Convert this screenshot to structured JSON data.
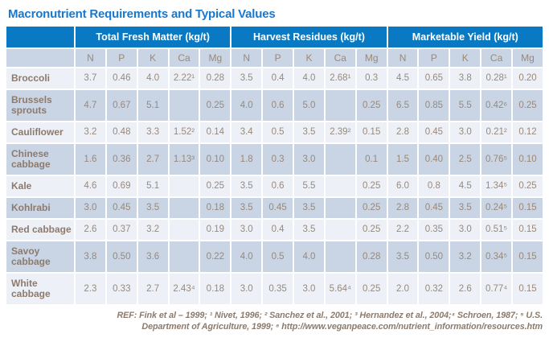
{
  "title": "Macronutrient Requirements and Typical Values",
  "colors": {
    "title_blue": "#1778ce",
    "header_blue": "#0879c2",
    "row_light": "#edf1f7",
    "row_dark": "#c9d5e5",
    "text_brown": "#9b8877"
  },
  "chart_data": {
    "type": "table",
    "title": "Macronutrient Requirements and Typical Values",
    "column_groups": [
      "Total Fresh Matter (kg/t)",
      "Harvest Residues (kg/t)",
      "Marketable Yield (kg/t)"
    ],
    "columns_per_group": [
      "N",
      "P",
      "K",
      "Ca",
      "Mg"
    ],
    "rows": [
      {
        "label": "Broccoli",
        "total_fresh_matter": [
          "3.7",
          "0.46",
          "4.0",
          "2.22¹",
          "0.28"
        ],
        "harvest_residues": [
          "3.5",
          "0.4",
          "4.0",
          "2.68¹",
          "0.3"
        ],
        "marketable_yield": [
          "4.5",
          "0.65",
          "3.8",
          "0.28¹",
          "0.20"
        ]
      },
      {
        "label": "Brussels sprouts",
        "total_fresh_matter": [
          "4.7",
          "0.67",
          "5.1",
          "",
          "0.25"
        ],
        "harvest_residues": [
          "4.0",
          "0.6",
          "5.0",
          "",
          "0.25"
        ],
        "marketable_yield": [
          "6.5",
          "0.85",
          "5.5",
          "0.42⁶",
          "0.25"
        ]
      },
      {
        "label": "Cauliflower",
        "total_fresh_matter": [
          "3.2",
          "0.48",
          "3.3",
          "1.52²",
          "0.14"
        ],
        "harvest_residues": [
          "3.4",
          "0.5",
          "3.5",
          "2.39²",
          "0.15"
        ],
        "marketable_yield": [
          "2.8",
          "0.45",
          "3.0",
          "0.21²",
          "0.12"
        ]
      },
      {
        "label": "Chinese cabbage",
        "total_fresh_matter": [
          "1.6",
          "0.36",
          "2.7",
          "1.13³",
          "0.10"
        ],
        "harvest_residues": [
          "1.8",
          "0.3",
          "3.0",
          "",
          "0.1"
        ],
        "marketable_yield": [
          "1.5",
          "0.40",
          "2.5",
          "0.76⁵",
          "0.10"
        ]
      },
      {
        "label": "Kale",
        "total_fresh_matter": [
          "4.6",
          "0.69",
          "5.1",
          "",
          "0.25"
        ],
        "harvest_residues": [
          "3.5",
          "0.6",
          "5.5",
          "",
          "0.25"
        ],
        "marketable_yield": [
          "6.0",
          "0.8",
          "4.5",
          "1.34⁵",
          "0.25"
        ]
      },
      {
        "label": "Kohlrabi",
        "total_fresh_matter": [
          "3.0",
          "0.45",
          "3.5",
          "",
          "0.18"
        ],
        "harvest_residues": [
          "3.5",
          "0.45",
          "3.5",
          "",
          "0.25"
        ],
        "marketable_yield": [
          "2.8",
          "0.45",
          "3.5",
          "0.24⁵",
          "0.15"
        ]
      },
      {
        "label": "Red cabbage",
        "total_fresh_matter": [
          "2.6",
          "0.37",
          "3.2",
          "",
          "0.19"
        ],
        "harvest_residues": [
          "3.0",
          "0.4",
          "3.5",
          "",
          "0.25"
        ],
        "marketable_yield": [
          "2.2",
          "0.35",
          "3.0",
          "0.51⁵",
          "0.15"
        ]
      },
      {
        "label": "Savoy cabbage",
        "total_fresh_matter": [
          "3.8",
          "0.50",
          "3.6",
          "",
          "0.22"
        ],
        "harvest_residues": [
          "4.0",
          "0.5",
          "4.0",
          "",
          "0.28"
        ],
        "marketable_yield": [
          "3.5",
          "0.50",
          "3.2",
          "0.34⁵",
          "0.15"
        ]
      },
      {
        "label": "White cabbage",
        "total_fresh_matter": [
          "2.3",
          "0.33",
          "2.7",
          "2.43⁴",
          "0.18"
        ],
        "harvest_residues": [
          "3.0",
          "0.35",
          "3.0",
          "5.64⁴",
          "0.25"
        ],
        "marketable_yield": [
          "2.0",
          "0.32",
          "2.6",
          "0.77⁴",
          "0.15"
        ]
      }
    ],
    "footnotes": "REF: Fink et al – 1999; ¹ Nivet, 1996; ² Sanchez et al., 2001; ³ Hernandez et al., 2004;⁴ Schroen, 1987; ⁵ U.S. Department of Agriculture, 1999; ⁶ http://www.veganpeace.com/nutrient_information/resources.htm"
  },
  "footer": {
    "line1": "REF: Fink et al – 1999; ¹ Nivet, 1996; ² Sanchez et al., 2001; ³ Hernandez et al., 2004;⁴ Schroen, 1987; ⁵ U.S.",
    "line2": "Department of Agriculture, 1999; ⁶ http://www.veganpeace.com/nutrient_information/resources.htm"
  }
}
